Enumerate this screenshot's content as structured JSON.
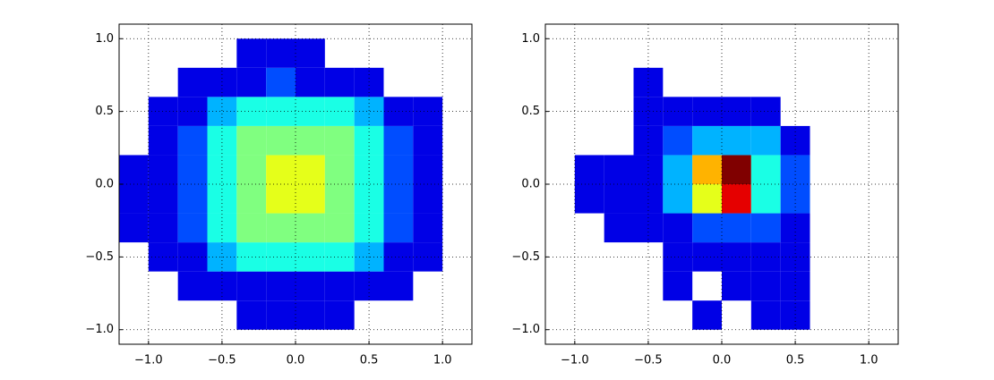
{
  "chart_data": [
    {
      "type": "histogram2d",
      "colormap": "jet",
      "grid": true,
      "xbins": [
        -1.2,
        -1.0,
        -0.8,
        -0.6,
        -0.4,
        -0.2,
        0,
        0.2,
        0.4,
        0.6,
        0.8,
        1.0,
        1.2
      ],
      "ybins": [
        -1.0,
        -0.8,
        -0.6,
        -0.4,
        -0.2,
        0,
        0.2,
        0.4,
        0.6,
        0.8,
        1.0
      ],
      "counts": [
        [
          0,
          0,
          0,
          0,
          1,
          1,
          1,
          1,
          0,
          0,
          0,
          0
        ],
        [
          0,
          0,
          1,
          1,
          1,
          1,
          1,
          1,
          1,
          1,
          0,
          0
        ],
        [
          0,
          1,
          1,
          3,
          4,
          4,
          4,
          4,
          3,
          1,
          1,
          0
        ],
        [
          1,
          1,
          2,
          4,
          5,
          5,
          5,
          5,
          4,
          2,
          1,
          0
        ],
        [
          1,
          1,
          2,
          4,
          5,
          6,
          6,
          5,
          4,
          2,
          1,
          0
        ],
        [
          1,
          1,
          2,
          4,
          5,
          6,
          6,
          5,
          4,
          2,
          1,
          0
        ],
        [
          0,
          1,
          2,
          4,
          5,
          5,
          5,
          5,
          4,
          2,
          1,
          0
        ],
        [
          0,
          1,
          1,
          3,
          4,
          4,
          4,
          4,
          3,
          1,
          1,
          0
        ],
        [
          0,
          0,
          1,
          1,
          1,
          2,
          1,
          1,
          1,
          0,
          0,
          0
        ],
        [
          0,
          0,
          0,
          0,
          1,
          1,
          1,
          0,
          0,
          0,
          0,
          0
        ]
      ],
      "xlim": [
        -1.2,
        1.2
      ],
      "ylim": [
        -1.1,
        1.1
      ],
      "xticks": [
        {
          "value": -1.0,
          "label": "−1.0"
        },
        {
          "value": -0.5,
          "label": "−0.5"
        },
        {
          "value": 0,
          "label": "0.0"
        },
        0.5,
        {
          "value": 1.0,
          "label": "1.0"
        }
      ],
      "yticks": [
        {
          "value": -1.0,
          "label": "−1.0"
        },
        {
          "value": -0.5,
          "label": "−0.5"
        },
        {
          "value": 0,
          "label": "0.0"
        },
        0.5,
        {
          "value": 1.0,
          "label": "1.0"
        }
      ]
    },
    {
      "type": "histogram2d",
      "colormap": "jet",
      "grid": true,
      "xbins": [
        -1.2,
        -1.0,
        -0.8,
        -0.6,
        -0.4,
        -0.2,
        0,
        0.2,
        0.4,
        0.6,
        0.8,
        1.0,
        1.2
      ],
      "ybins": [
        -1.0,
        -0.8,
        -0.6,
        -0.4,
        -0.2,
        0,
        0.2,
        0.4,
        0.6,
        0.8,
        1.0
      ],
      "counts": [
        [
          0,
          0,
          0,
          0,
          0,
          1,
          0,
          1,
          1,
          0,
          0,
          0
        ],
        [
          0,
          0,
          0,
          0,
          1,
          0,
          1,
          1,
          1,
          0,
          0,
          0
        ],
        [
          0,
          0,
          0,
          0,
          1,
          1,
          1,
          1,
          1,
          0,
          0,
          0
        ],
        [
          0,
          0,
          1,
          1,
          1,
          2,
          2,
          2,
          1,
          0,
          0,
          0
        ],
        [
          0,
          1,
          1,
          1,
          3,
          6,
          9,
          4,
          2,
          0,
          0,
          0
        ],
        [
          0,
          1,
          1,
          1,
          3,
          7,
          10,
          4,
          2,
          0,
          0,
          0
        ],
        [
          0,
          0,
          0,
          1,
          2,
          3,
          3,
          3,
          1,
          0,
          0,
          0
        ],
        [
          0,
          0,
          0,
          1,
          1,
          1,
          1,
          1,
          0,
          0,
          0,
          0
        ],
        [
          0,
          0,
          0,
          1,
          0,
          0,
          0,
          0,
          0,
          0,
          0,
          0
        ],
        [
          0,
          0,
          0,
          0,
          0,
          0,
          0,
          0,
          0,
          0,
          0,
          0
        ]
      ],
      "xlim": [
        -1.2,
        1.2
      ],
      "ylim": [
        -1.1,
        1.1
      ],
      "xticks": [
        {
          "value": -1.0,
          "label": "−1.0"
        },
        {
          "value": -0.5,
          "label": "−0.5"
        },
        {
          "value": 0,
          "label": "0.0"
        },
        0.5,
        {
          "value": 1.0,
          "label": "1.0"
        }
      ],
      "yticks": [
        {
          "value": -1.0,
          "label": "−1.0"
        },
        {
          "value": -0.5,
          "label": "−0.5"
        },
        {
          "value": 0,
          "label": "0.0"
        },
        0.5,
        {
          "value": 1.0,
          "label": "1.0"
        }
      ]
    }
  ]
}
